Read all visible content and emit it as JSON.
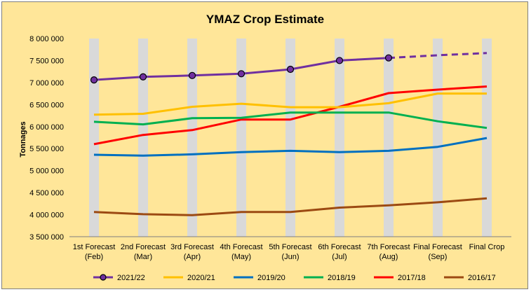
{
  "chart_data": {
    "type": "line",
    "title": "YMAZ Crop Estimate",
    "ylabel": "Tonnages",
    "xlabel": "",
    "ylim": [
      3500000,
      8000000
    ],
    "ytick_step": 500000,
    "ytick_labels": [
      "3 500 000",
      "4 000 000",
      "4 500 000",
      "5 000 000",
      "5 500 000",
      "6 000 000",
      "6 500 000",
      "7 000 000",
      "7 500 000",
      "8 000 000"
    ],
    "categories": [
      [
        "1st Forecast",
        "(Feb)"
      ],
      [
        "2nd Forecast",
        "(Mar)"
      ],
      [
        "3rd Forecast",
        "(Apr)"
      ],
      [
        "4th Forecast",
        "(May)"
      ],
      [
        "5th Forecast",
        "(Jun)"
      ],
      [
        "6th Forecast",
        "(Jul)"
      ],
      [
        "7th Forecast",
        "(Aug)"
      ],
      [
        "Final Forecast",
        "(Sep)"
      ],
      [
        "Final Crop",
        ""
      ]
    ],
    "series": [
      {
        "name": "2021/22",
        "color": "#7030a0",
        "markers": true,
        "values": [
          7060000,
          7130000,
          7160000,
          7200000,
          7300000,
          7500000,
          7560000,
          null,
          null
        ],
        "projected": [
          null,
          null,
          null,
          null,
          null,
          null,
          7560000,
          7620000,
          7670000
        ]
      },
      {
        "name": "2020/21",
        "color": "#ffc000",
        "values": [
          6270000,
          6290000,
          6450000,
          6520000,
          6440000,
          6440000,
          6530000,
          6750000,
          6750000
        ]
      },
      {
        "name": "2019/20",
        "color": "#0070c0",
        "values": [
          5360000,
          5340000,
          5370000,
          5420000,
          5450000,
          5420000,
          5450000,
          5540000,
          5740000
        ]
      },
      {
        "name": "2018/19",
        "color": "#00b050",
        "values": [
          6110000,
          6050000,
          6190000,
          6200000,
          6320000,
          6320000,
          6320000,
          6120000,
          5970000
        ]
      },
      {
        "name": "2017/18",
        "color": "#ff0000",
        "values": [
          5600000,
          5810000,
          5920000,
          6160000,
          6160000,
          6450000,
          6760000,
          6840000,
          6910000
        ]
      },
      {
        "name": "2016/17",
        "color": "#9c4a12",
        "values": [
          4060000,
          4010000,
          3990000,
          4060000,
          4060000,
          4160000,
          4210000,
          4280000,
          4370000
        ]
      }
    ],
    "grid": false,
    "category_bands": true,
    "legend_position": "bottom"
  },
  "colors": {
    "background": "#ffe699",
    "band": "#d9d9d9",
    "axis": "#7f7f7f",
    "marker_fill": "#7030a0",
    "marker_stroke": "#000000"
  }
}
